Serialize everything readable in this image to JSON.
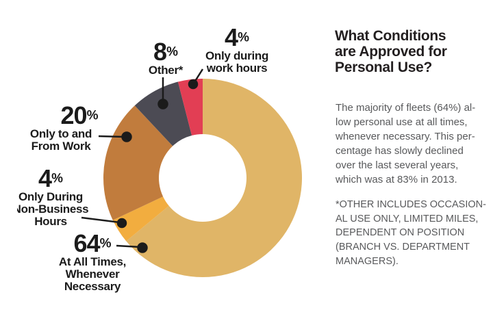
{
  "chart_data": {
    "type": "pie",
    "donut": true,
    "title": "What Conditions are Approved for Personal Use?",
    "units": "%",
    "start_angle_deg": 0,
    "direction": "clockwise",
    "legend_position": "callout-labels",
    "slices": [
      {
        "label": "At All Times, Whenever Necessary",
        "value": 64,
        "color": "#E0B567"
      },
      {
        "label": "Only During Non-Business Hours",
        "value": 4,
        "color": "#F2AD3F"
      },
      {
        "label": "Only to and From Work",
        "value": 20,
        "color": "#C17C3D"
      },
      {
        "label": "Other*",
        "value": 8,
        "color": "#4C4B54"
      },
      {
        "label": "Only during work hours",
        "value": 4,
        "color": "#E23E54"
      }
    ]
  },
  "callouts": {
    "work_hours": {
      "pct": "4",
      "sym": "%",
      "lines": [
        "Only during",
        "work hours"
      ]
    },
    "other": {
      "pct": "8",
      "sym": "%",
      "lines": [
        "Other*"
      ]
    },
    "to_from_work": {
      "pct": "20",
      "sym": "%",
      "lines": [
        "Only to and",
        "From Work"
      ]
    },
    "non_business": {
      "pct": "4",
      "sym": "%",
      "lines": [
        "Only During",
        "Non-Business",
        "Hours"
      ]
    },
    "all_times": {
      "pct": "64",
      "sym": "%",
      "lines": [
        "At All Times,",
        "Whenever",
        "Necessary"
      ]
    }
  },
  "panel": {
    "title_lines": [
      "What Conditions",
      "are Approved for",
      "Personal Use?"
    ],
    "body_lines": [
      "The majority of fleets (64%) al-",
      "low personal use at all times,",
      "whenever necessary. This per-",
      "centage has slowly declined",
      "over the last several years,",
      "which was at 83% in 2013."
    ],
    "footnote_lines": [
      "*OTHER INCLUDES OCCASION-",
      "AL USE ONLY, LIMITED MILES,",
      "DEPENDENT ON POSITION",
      "(BRANCH VS. DEPARTMENT",
      "MANAGERS)."
    ]
  },
  "colors": {
    "label_text": "#1B1B1B",
    "title_text": "#231F20",
    "body_text": "#58595B",
    "background": "#FFFFFF"
  }
}
